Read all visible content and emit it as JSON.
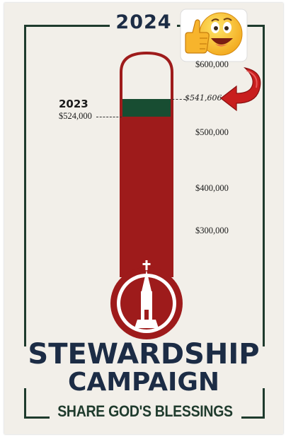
{
  "campaign_year": "2024",
  "title_line_1": "STEWARDSHIP",
  "title_line_2": "CAMPAIGN",
  "tagline": "SHARE GOD'S BLESSINGS",
  "scale_labels": {
    "t600": "$600,000",
    "t500": "$500,000",
    "t400": "$400,000",
    "t300": "$300,000"
  },
  "previous": {
    "year": "2023",
    "amount": "$524,000"
  },
  "current_amount": "$541,606",
  "icons": [
    "thumbs-up-emoji-icon",
    "curved-red-arrow-icon",
    "church-steeple-icon"
  ],
  "colors": {
    "navy": "#1c2c45",
    "frame_green": "#1f3b2d",
    "thermometer_red": "#9e1b1b",
    "progress_green": "#184d32",
    "background": "#f2efe9"
  }
}
